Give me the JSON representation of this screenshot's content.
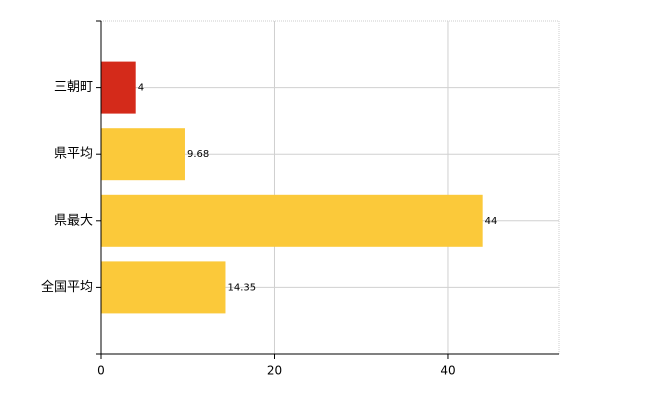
{
  "chart_data": {
    "type": "bar",
    "orientation": "horizontal",
    "categories": [
      "三朝町",
      "県平均",
      "県最大",
      "全国平均"
    ],
    "values": [
      4,
      9.68,
      44,
      14.35
    ],
    "colors": [
      "#d42a1a",
      "#fbc93a",
      "#fbc93a",
      "#fbc93a"
    ],
    "xlim": [
      0,
      52.8
    ],
    "xticks": [
      0,
      20,
      40
    ],
    "grid": true
  }
}
